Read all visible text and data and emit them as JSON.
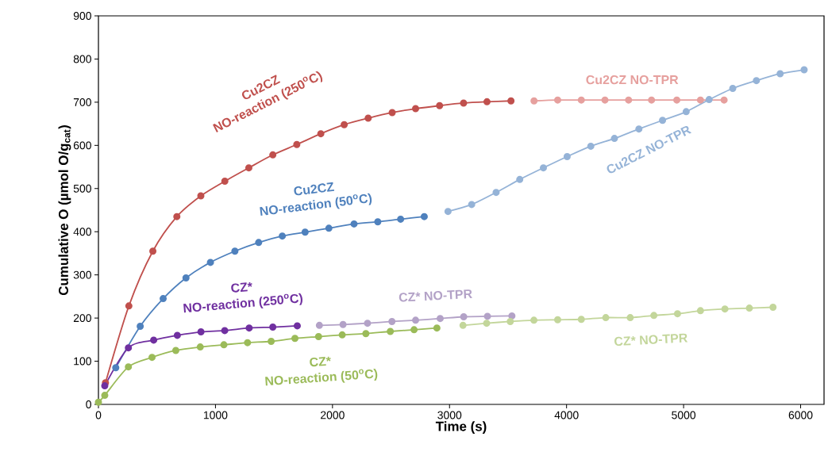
{
  "chart_data": {
    "type": "line",
    "xlabel": "Time (s)",
    "ylabel": "Cumulative O (µmol O/g$_{cat}$)",
    "xlim": [
      0,
      6200
    ],
    "ylim": [
      0,
      900
    ],
    "xticks": [
      0,
      1000,
      2000,
      3000,
      4000,
      5000,
      6000
    ],
    "yticks": [
      0,
      100,
      200,
      300,
      400,
      500,
      600,
      700,
      800,
      900
    ],
    "grid": false,
    "marker": "circle",
    "line_style": "solid",
    "series": [
      {
        "name": "Cu2CZ NO-reaction (250$^{o}$C)",
        "color": "#c0504d",
        "x": [
          60,
          260,
          465,
          670,
          875,
          1080,
          1285,
          1490,
          1695,
          1900,
          2100,
          2305,
          2510,
          2710,
          2915,
          3120,
          3320,
          3525
        ],
        "values": [
          50,
          228,
          355,
          435,
          483,
          517,
          548,
          578,
          602,
          627,
          648,
          663,
          676,
          685,
          692,
          698,
          701,
          703
        ]
      },
      {
        "name": "Cu2CZ NO-reaction (50$^{o}$C)",
        "color": "#4f81bd",
        "x": [
          148,
          357,
          553,
          748,
          957,
          1166,
          1369,
          1571,
          1766,
          1969,
          2184,
          2387,
          2582,
          2784
        ],
        "values": [
          85,
          181,
          245,
          293,
          329,
          355,
          375,
          390,
          399,
          408,
          418,
          423,
          429,
          435
        ]
      },
      {
        "name": "CZ* NO-reaction (250$^{o}$C)",
        "color": "#7030a0",
        "x": [
          54,
          256,
          472,
          674,
          876,
          1079,
          1288,
          1490,
          1699
        ],
        "values": [
          43,
          131,
          149,
          160,
          168,
          171,
          177,
          179,
          182
        ]
      },
      {
        "name": "CZ* NO-reaction (50$^{o}$C)",
        "color": "#9bbb59",
        "x": [
          0,
          54,
          256,
          458,
          661,
          870,
          1072,
          1274,
          1476,
          1679,
          1881,
          2083,
          2285,
          2494,
          2697,
          2892
        ],
        "values": [
          5,
          21,
          87,
          109,
          125,
          133,
          138,
          143,
          146,
          153,
          157,
          161,
          164,
          169,
          173,
          177
        ]
      },
      {
        "name": "Cu2CZ NO-TPR",
        "color": "#e6a09e",
        "x": [
          3722,
          3924,
          4126,
          4328,
          4530,
          4726,
          4942,
          5144,
          5346
        ],
        "values": [
          703,
          705,
          705,
          705,
          705,
          705,
          705,
          705,
          705
        ]
      },
      {
        "name": "Cu2CZ NO-TPR",
        "color": "#95b3d7",
        "x": [
          2987,
          3189,
          3398,
          3600,
          3802,
          4005,
          4207,
          4409,
          4618,
          4820,
          5022,
          5218,
          5420,
          5622,
          5825,
          6030
        ],
        "values": [
          447,
          463,
          491,
          521,
          548,
          574,
          598,
          616,
          638,
          658,
          678,
          706,
          732,
          750,
          766,
          775
        ]
      },
      {
        "name": "CZ* NO-TPR",
        "color": "#b3a2c7",
        "x": [
          1888,
          2090,
          2299,
          2508,
          2710,
          2920,
          3121,
          3324,
          3533
        ],
        "values": [
          183,
          185,
          188,
          192,
          195,
          199,
          203,
          204,
          205
        ]
      },
      {
        "name": "CZ* NO-TPR",
        "color": "#c3d69b",
        "x": [
          3115,
          3317,
          3519,
          3721,
          3924,
          4126,
          4335,
          4544,
          4746,
          4948,
          5144,
          5353,
          5562,
          5764
        ],
        "values": [
          183,
          188,
          192,
          195,
          196,
          197,
          201,
          201,
          206,
          210,
          217,
          221,
          223,
          225
        ]
      }
    ]
  }
}
